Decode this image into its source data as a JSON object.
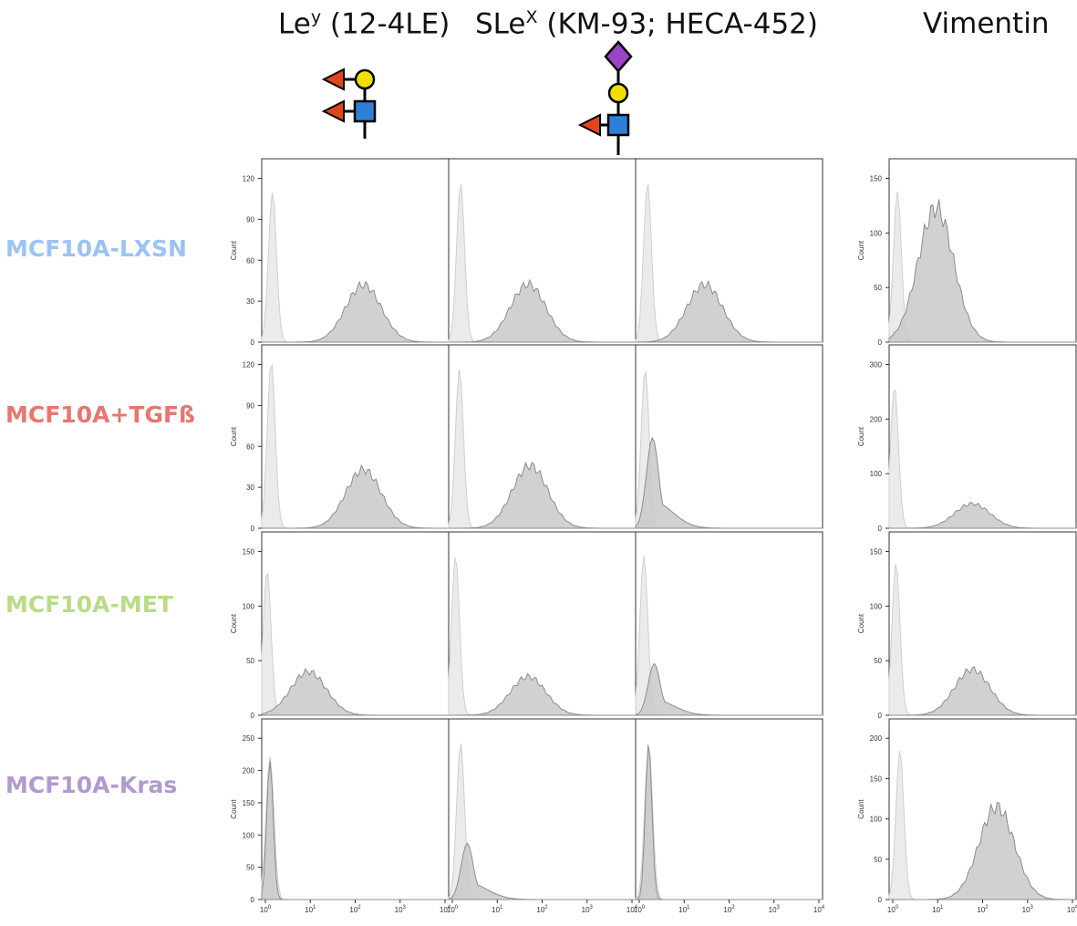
{
  "headers": {
    "ley": {
      "base": "Le",
      "sup": "y",
      "rest": " (12-4LE)"
    },
    "slex": {
      "base": "SLe",
      "sup": "X",
      "rest": " (KM-93; HECA-452)"
    },
    "vimentin": "Vimentin"
  },
  "rows": [
    {
      "label": "MCF10A-LXSN",
      "color": "#9cc3f5"
    },
    {
      "label": "MCF10A+TGFß",
      "color": "#e87670"
    },
    {
      "label": "MCF10A-MET",
      "color": "#b9dc86"
    },
    {
      "label": "MCF10A-Kras",
      "color": "#b09ad0"
    }
  ],
  "colors": {
    "isotype_fill": "#ebebeb",
    "isotype_line": "#cfcfcf",
    "stain_fill": "#c9c9c9",
    "stain_line": "#8c8c8c",
    "fucose": "#e2461a",
    "galactose": "#f0e000",
    "glcnac": "#2e7fd6",
    "sialic_acid": "#9a45c9"
  },
  "chart_data": {
    "type": "area",
    "xscale": "log",
    "xlim": [
      "10^0",
      "10^4"
    ],
    "ylabel": "Count",
    "x_tick_labels": [
      "10^0",
      "10^1",
      "10^2",
      "10^3",
      "10^4"
    ],
    "panels": [
      {
        "row": 0,
        "col": 0,
        "y_ticks": [
          0,
          30,
          60,
          90,
          120
        ],
        "isotype_peak_x": 1.7,
        "isotype_peak_y": 110,
        "stain_peak_x": 150,
        "stain_peak_y": 42
      },
      {
        "row": 0,
        "col": 1,
        "y_ticks": [],
        "isotype_peak_x": 1.8,
        "isotype_peak_y": 110,
        "stain_peak_x": 50,
        "stain_peak_y": 40
      },
      {
        "row": 0,
        "col": 2,
        "y_ticks": [],
        "isotype_peak_x": 1.8,
        "isotype_peak_y": 105,
        "stain_peak_x": 30,
        "stain_peak_y": 38
      },
      {
        "row": 0,
        "col": 3,
        "y_ticks": [
          0,
          50,
          100,
          150
        ],
        "isotype_peak_x": 1.5,
        "isotype_peak_y": 138,
        "stain_peak_x": 10,
        "stain_peak_y": 123
      },
      {
        "row": 1,
        "col": 0,
        "y_ticks": [
          0,
          30,
          60,
          90,
          120
        ],
        "isotype_peak_x": 1.6,
        "isotype_peak_y": 122,
        "stain_peak_x": 150,
        "stain_peak_y": 43
      },
      {
        "row": 1,
        "col": 1,
        "y_ticks": [],
        "isotype_peak_x": 1.7,
        "isotype_peak_y": 122,
        "stain_peak_x": 55,
        "stain_peak_y": 48
      },
      {
        "row": 1,
        "col": 2,
        "y_ticks": [],
        "isotype_peak_x": 1.6,
        "isotype_peak_y": 127,
        "stain_peak_x": 2.3,
        "stain_peak_y": 72
      },
      {
        "row": 1,
        "col": 3,
        "y_ticks": [
          0,
          100,
          200,
          300
        ],
        "isotype_peak_x": 1.3,
        "isotype_peak_y": 260,
        "stain_peak_x": 60,
        "stain_peak_y": 45
      },
      {
        "row": 2,
        "col": 0,
        "y_ticks": [
          0,
          50,
          100,
          150
        ],
        "isotype_peak_x": 1.3,
        "isotype_peak_y": 133,
        "stain_peak_x": 10,
        "stain_peak_y": 40
      },
      {
        "row": 2,
        "col": 1,
        "y_ticks": [],
        "isotype_peak_x": 1.4,
        "isotype_peak_y": 132,
        "stain_peak_x": 50,
        "stain_peak_y": 32
      },
      {
        "row": 2,
        "col": 2,
        "y_ticks": [],
        "isotype_peak_x": 1.5,
        "isotype_peak_y": 130,
        "stain_peak_x": 2.5,
        "stain_peak_y": 42
      },
      {
        "row": 2,
        "col": 3,
        "y_ticks": [
          0,
          50,
          100,
          150
        ],
        "isotype_peak_x": 1.4,
        "isotype_peak_y": 140,
        "stain_peak_x": 60,
        "stain_peak_y": 42
      },
      {
        "row": 3,
        "col": 0,
        "y_ticks": [
          0,
          50,
          100,
          150,
          200,
          250
        ],
        "isotype_peak_x": 1.5,
        "isotype_peak_y": 222,
        "stain_peak_x": 1.5,
        "stain_peak_y": 215
      },
      {
        "row": 3,
        "col": 1,
        "y_ticks": [],
        "isotype_peak_x": 1.8,
        "isotype_peak_y": 218,
        "stain_peak_x": 2.5,
        "stain_peak_y": 78
      },
      {
        "row": 3,
        "col": 2,
        "y_ticks": [],
        "isotype_peak_x": 1.9,
        "isotype_peak_y": 222,
        "stain_peak_x": 1.9,
        "stain_peak_y": 225
      },
      {
        "row": 3,
        "col": 3,
        "y_ticks": [
          0,
          50,
          100,
          150,
          200
        ],
        "isotype_peak_x": 1.7,
        "isotype_peak_y": 185,
        "stain_peak_x": 200,
        "stain_peak_y": 115
      }
    ]
  }
}
